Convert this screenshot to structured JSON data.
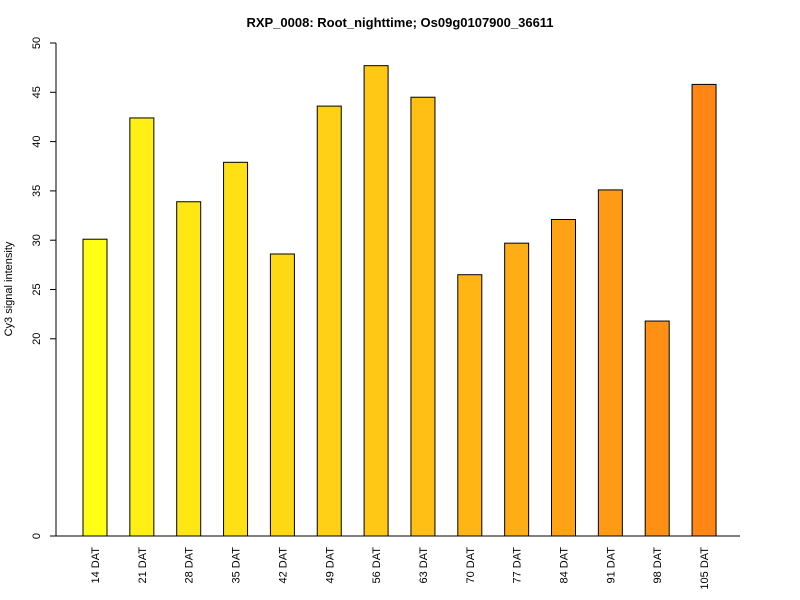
{
  "chart_data": {
    "type": "bar",
    "title": "RXP_0008: Root_nighttime; Os09g0107900_36611",
    "xlabel": "",
    "ylabel": "Cy3 signal intensity",
    "categories": [
      "14 DAT",
      "21 DAT",
      "28 DAT",
      "35 DAT",
      "42 DAT",
      "49 DAT",
      "56 DAT",
      "63 DAT",
      "70 DAT",
      "77 DAT",
      "84 DAT",
      "91 DAT",
      "98 DAT",
      "105 DAT"
    ],
    "values": [
      30.1,
      42.4,
      33.9,
      37.9,
      28.6,
      43.6,
      47.7,
      44.5,
      26.5,
      29.7,
      32.1,
      35.1,
      21.8,
      45.8
    ],
    "colors": [
      "#FFFF14",
      "#FFEF14",
      "#FFE714",
      "#FFE014",
      "#FFD814",
      "#FFD014",
      "#FFC814",
      "#FFBF14",
      "#FFB614",
      "#FFAD14",
      "#FFA314",
      "#FF9A14",
      "#FF9014",
      "#FF8514"
    ],
    "ylim": [
      0,
      50
    ],
    "yticks": [
      0,
      20,
      25,
      30,
      35,
      40,
      45,
      50
    ],
    "grid": false,
    "legend": "none"
  }
}
